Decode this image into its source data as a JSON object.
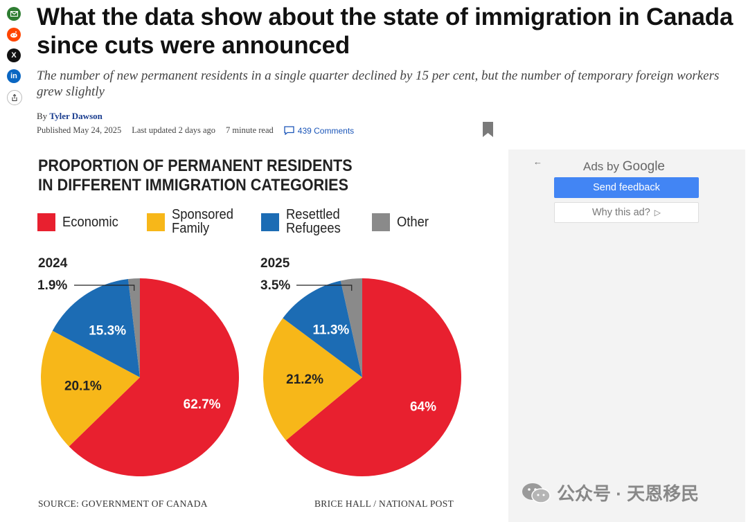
{
  "article": {
    "headline": "What the data show about the state of immigration in Canada since cuts were announced",
    "dek": "The number of new permanent residents in a single quarter declined by 15 per cent, but the number of temporary foreign workers grew slightly",
    "by_prefix": "By",
    "author": "Tyler Dawson",
    "published": "Published May 24, 2025",
    "updated": "Last updated 2 days ago",
    "read_time": "7 minute read",
    "comments": "439 Comments"
  },
  "share": {
    "icons": [
      "mail-icon",
      "reddit-icon",
      "x-icon",
      "linkedin-icon",
      "share-icon"
    ],
    "x_glyph": "X",
    "linkedin_glyph": "in"
  },
  "infographic": {
    "title_line1": "PROPORTION OF PERMANENT RESIDENTS",
    "title_line2": "IN DIFFERENT IMMIGRATION CATEGORIES",
    "legend": [
      {
        "label": "Economic",
        "color": "#e8202f"
      },
      {
        "label": "Sponsored\nFamily",
        "color": "#f7b719"
      },
      {
        "label": "Resettled\nRefugees",
        "color": "#1c6cb4"
      },
      {
        "label": "Other",
        "color": "#8a8a8a"
      }
    ],
    "source": "SOURCE: GOVERNMENT OF CANADA",
    "credit": "BRICE HALL / NATIONAL POST"
  },
  "chart_data": [
    {
      "type": "pie",
      "title": "2024",
      "labels": [
        "Economic",
        "Sponsored Family",
        "Resettled Refugees",
        "Other"
      ],
      "values": [
        62.7,
        20.1,
        15.3,
        1.9
      ],
      "value_labels": [
        "62.7%",
        "20.1%",
        "15.3%",
        "1.9%"
      ],
      "colors": [
        "#e8202f",
        "#f7b719",
        "#1c6cb4",
        "#8a8a8a"
      ]
    },
    {
      "type": "pie",
      "title": "2025",
      "labels": [
        "Economic",
        "Sponsored Family",
        "Resettled Refugees",
        "Other"
      ],
      "values": [
        64,
        21.2,
        11.3,
        3.5
      ],
      "value_labels": [
        "64%",
        "21.2%",
        "11.3%",
        "3.5%"
      ],
      "colors": [
        "#e8202f",
        "#f7b719",
        "#1c6cb4",
        "#8a8a8a"
      ]
    }
  ],
  "ad": {
    "back": "←",
    "ads_by": "Ads by",
    "google": "Google",
    "send_feedback": "Send feedback",
    "why_this_ad": "Why this ad?",
    "why_icon": "▷"
  },
  "watermark": "公众号 · 天恩移民"
}
